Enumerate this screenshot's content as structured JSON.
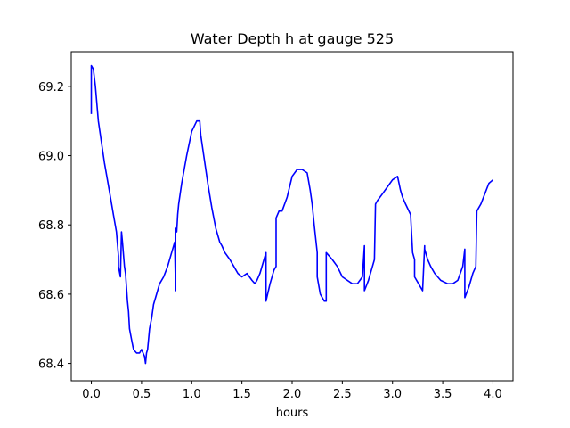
{
  "chart_data": {
    "type": "line",
    "title": "Water Depth h at gauge 525",
    "xlabel": "hours",
    "ylabel": "",
    "xlim": [
      -0.2,
      4.2
    ],
    "ylim": [
      68.35,
      69.3
    ],
    "xticks": [
      0.0,
      0.5,
      1.0,
      1.5,
      2.0,
      2.5,
      3.0,
      3.5,
      4.0
    ],
    "xtick_labels": [
      "0.0",
      "0.5",
      "1.0",
      "1.5",
      "2.0",
      "2.5",
      "3.0",
      "3.5",
      "4.0"
    ],
    "yticks": [
      68.4,
      68.6,
      68.8,
      69.0,
      69.2
    ],
    "ytick_labels": [
      "68.4",
      "68.6",
      "68.8",
      "69.0",
      "69.2"
    ],
    "grid": false,
    "color": "#0000ff",
    "series": [
      {
        "x": [
          0.0,
          0.0,
          0.02,
          0.04,
          0.07,
          0.1,
          0.13,
          0.16,
          0.19,
          0.22,
          0.25,
          0.27,
          0.27,
          0.29,
          0.3,
          0.31,
          0.33,
          0.34,
          0.36,
          0.37,
          0.38,
          0.4,
          0.42,
          0.45,
          0.48,
          0.5,
          0.53,
          0.54,
          0.55,
          0.56,
          0.58,
          0.6,
          0.62,
          0.65,
          0.68,
          0.72,
          0.76,
          0.8,
          0.83,
          0.84,
          0.84,
          0.85,
          0.86,
          0.87,
          0.9,
          0.95,
          1.0,
          1.05,
          1.08,
          1.09,
          1.1,
          1.13,
          1.16,
          1.2,
          1.24,
          1.28,
          1.3,
          1.33,
          1.38,
          1.42,
          1.46,
          1.5,
          1.55,
          1.6,
          1.63,
          1.65,
          1.68,
          1.72,
          1.74,
          1.74,
          1.78,
          1.82,
          1.84,
          1.84,
          1.87,
          1.9,
          1.95,
          2.0,
          2.05,
          2.1,
          2.15,
          2.18,
          2.2,
          2.22,
          2.25,
          2.25,
          2.28,
          2.32,
          2.34,
          2.34,
          2.37,
          2.4,
          2.45,
          2.5,
          2.55,
          2.6,
          2.65,
          2.7,
          2.72,
          2.72,
          2.76,
          2.8,
          2.82,
          2.83,
          2.85,
          2.9,
          2.95,
          3.0,
          3.05,
          3.08,
          3.1,
          3.13,
          3.18,
          3.2,
          3.22,
          3.22,
          3.26,
          3.3,
          3.32,
          3.32,
          3.35,
          3.38,
          3.42,
          3.48,
          3.55,
          3.6,
          3.65,
          3.7,
          3.72,
          3.72,
          3.76,
          3.8,
          3.83,
          3.84,
          3.88,
          3.92,
          3.96,
          4.0
        ],
        "y": [
          69.12,
          69.26,
          69.25,
          69.2,
          69.1,
          69.04,
          68.98,
          68.93,
          68.88,
          68.83,
          68.78,
          68.71,
          68.68,
          68.65,
          68.78,
          68.75,
          68.68,
          68.66,
          68.58,
          68.55,
          68.5,
          68.47,
          68.44,
          68.43,
          68.43,
          68.44,
          68.42,
          68.4,
          68.43,
          68.44,
          68.5,
          68.53,
          68.57,
          68.6,
          68.63,
          68.65,
          68.68,
          68.72,
          68.75,
          68.61,
          68.79,
          68.78,
          68.83,
          68.86,
          68.92,
          69.0,
          69.07,
          69.1,
          69.1,
          69.06,
          69.04,
          68.98,
          68.92,
          68.85,
          68.79,
          68.75,
          68.74,
          68.72,
          68.7,
          68.68,
          68.66,
          68.65,
          68.66,
          68.64,
          68.63,
          68.64,
          68.66,
          68.7,
          68.72,
          68.58,
          68.63,
          68.67,
          68.68,
          68.82,
          68.84,
          68.84,
          68.88,
          68.94,
          68.96,
          68.96,
          68.95,
          68.9,
          68.86,
          68.8,
          68.72,
          68.65,
          68.6,
          68.58,
          68.58,
          68.72,
          68.71,
          68.7,
          68.68,
          68.65,
          68.64,
          68.63,
          68.63,
          68.65,
          68.74,
          68.61,
          68.64,
          68.68,
          68.7,
          68.86,
          68.87,
          68.89,
          68.91,
          68.93,
          68.94,
          68.9,
          68.88,
          68.86,
          68.83,
          68.72,
          68.7,
          68.65,
          68.63,
          68.61,
          68.74,
          68.73,
          68.7,
          68.68,
          68.66,
          68.64,
          68.63,
          68.63,
          68.64,
          68.68,
          68.73,
          68.59,
          68.62,
          68.66,
          68.68,
          68.84,
          68.86,
          68.89,
          68.92,
          68.93
        ]
      }
    ]
  }
}
